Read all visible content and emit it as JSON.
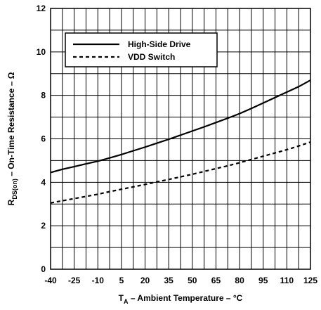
{
  "chart_data": {
    "type": "line",
    "xlabel": {
      "main": "T",
      "sub": "A",
      "rest": " – Ambient Temperature – °C"
    },
    "ylabel": {
      "main": "R",
      "sub": "DS(on)",
      "rest": " – On-Time Resistance – Ω"
    },
    "xlim": [
      -40,
      125
    ],
    "ylim": [
      0,
      12
    ],
    "x_ticks": [
      "-40",
      "-25",
      "-10",
      "5",
      "20",
      "35",
      "50",
      "65",
      "80",
      "95",
      "110",
      "125"
    ],
    "y_ticks": [
      "0",
      "2",
      "4",
      "6",
      "8",
      "10",
      "12"
    ],
    "grid": true,
    "legend_position": "top-left",
    "series": [
      {
        "name": "High-Side Drive",
        "style": "solid",
        "x": [
          -40,
          -32.5,
          -25,
          -17.5,
          -10,
          -2.5,
          5,
          12.5,
          20,
          27.5,
          35,
          42.5,
          50,
          57.5,
          65,
          72.5,
          80,
          87.5,
          95,
          102.5,
          110,
          117.5,
          125
        ],
        "y": [
          4.45,
          4.6,
          4.72,
          4.85,
          4.97,
          5.12,
          5.28,
          5.45,
          5.62,
          5.8,
          5.98,
          6.17,
          6.36,
          6.55,
          6.75,
          6.95,
          7.16,
          7.4,
          7.65,
          7.9,
          8.15,
          8.4,
          8.7
        ]
      },
      {
        "name": "VDD Switch",
        "style": "dashed",
        "x": [
          -40,
          -32.5,
          -25,
          -17.5,
          -10,
          -2.5,
          5,
          12.5,
          20,
          27.5,
          35,
          42.5,
          50,
          57.5,
          65,
          72.5,
          80,
          87.5,
          95,
          102.5,
          110,
          117.5,
          125
        ],
        "y": [
          3.05,
          3.15,
          3.25,
          3.35,
          3.45,
          3.57,
          3.68,
          3.79,
          3.9,
          4.02,
          4.13,
          4.25,
          4.37,
          4.5,
          4.63,
          4.76,
          4.9,
          5.05,
          5.2,
          5.35,
          5.5,
          5.67,
          5.85
        ]
      }
    ]
  }
}
